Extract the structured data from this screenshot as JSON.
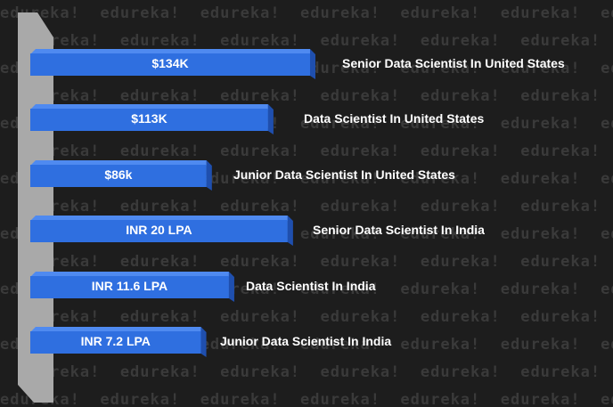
{
  "watermark": {
    "text": "edureka!"
  },
  "colors": {
    "background": "#1d1d1d",
    "bar_front": "#2f6fe0",
    "bar_top": "#4f8af0",
    "bar_side": "#1f4fae",
    "wall_front": "#a9a9a9",
    "wall_side": "#7a7a7a",
    "label": "#ffffff"
  },
  "chart_data": {
    "type": "bar",
    "orientation": "horizontal",
    "bar_style": "3d",
    "grid": false,
    "legend": "none",
    "xlim": [
      0,
      150
    ],
    "categories": [
      "Senior Data Scientist In United States",
      "Data Scientist In United States",
      "Junior Data Scientist In United States",
      "Senior Data Scientist In India",
      "Data Scientist In India",
      "Junior Data Scientist In India"
    ],
    "values": [
      134,
      113,
      86,
      20,
      11.6,
      7.2
    ],
    "bar_lengths_relative": [
      1.0,
      0.85,
      0.63,
      0.92,
      0.71,
      0.61
    ],
    "value_labels": [
      "$134K",
      "$113K",
      "$86k",
      "INR 20 LPA",
      "INR 11.6 LPA",
      "INR 7.2 LPA"
    ],
    "units": [
      "USD thousands",
      "USD thousands",
      "USD thousands",
      "INR lakh per annum",
      "INR lakh per annum",
      "INR lakh per annum"
    ]
  }
}
